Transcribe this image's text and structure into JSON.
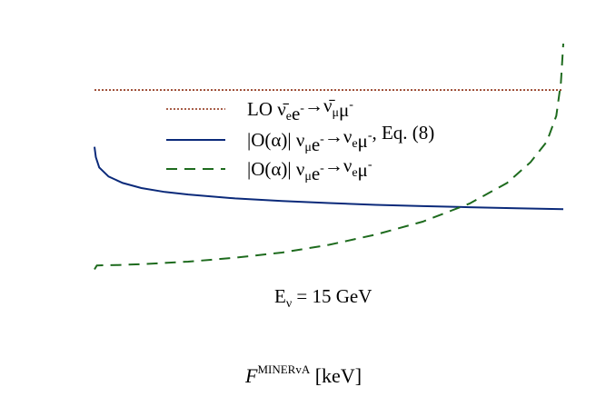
{
  "chart_data": {
    "type": "line",
    "xlabel_symbol": "F",
    "xlabel_sup": "MINERvA",
    "xlabel_unit": "[keV]",
    "annotation": {
      "prefix": "E",
      "sub": "ν",
      "value": "= 15 GeV"
    },
    "legend_placement": "upper-center",
    "series": [
      {
        "legend_parts": [
          {
            "t": "LO ",
            "k": "n"
          },
          {
            "t": "ν̄",
            "k": "n"
          },
          {
            "t": "e",
            "k": "sub"
          },
          {
            "t": "e",
            "k": "n"
          },
          {
            "t": "-",
            "k": "sup"
          },
          {
            "t": "→",
            "k": "n"
          },
          {
            "t": "ν̄",
            "k": "n"
          },
          {
            "t": "μ",
            "k": "sub"
          },
          {
            "t": "μ",
            "k": "n"
          },
          {
            "t": "-",
            "k": "sup"
          }
        ],
        "color": "#8b2a0e",
        "style": "dotted",
        "points": [
          [
            0.0,
            0.82
          ],
          [
            1.0,
            0.82
          ]
        ]
      },
      {
        "legend_parts": [
          {
            "t": "|O(α)| ν",
            "k": "n"
          },
          {
            "t": "μ",
            "k": "sub"
          },
          {
            "t": "e",
            "k": "n"
          },
          {
            "t": "-",
            "k": "sup"
          },
          {
            "t": "→ν",
            "k": "n"
          },
          {
            "t": "e",
            "k": "sub"
          },
          {
            "t": "μ",
            "k": "n"
          },
          {
            "t": "-",
            "k": "sup"
          },
          {
            "t": ", Eq. (8)",
            "k": "n"
          }
        ],
        "color": "#0b2a7a",
        "style": "solid",
        "points": [
          [
            0.0,
            0.6
          ],
          [
            0.003,
            0.56
          ],
          [
            0.01,
            0.52
          ],
          [
            0.03,
            0.485
          ],
          [
            0.06,
            0.46
          ],
          [
            0.1,
            0.44
          ],
          [
            0.15,
            0.425
          ],
          [
            0.2,
            0.415
          ],
          [
            0.3,
            0.4
          ],
          [
            0.4,
            0.39
          ],
          [
            0.5,
            0.382
          ],
          [
            0.6,
            0.375
          ],
          [
            0.7,
            0.37
          ],
          [
            0.8,
            0.366
          ],
          [
            0.9,
            0.362
          ],
          [
            1.0,
            0.358
          ]
        ]
      },
      {
        "legend_parts": [
          {
            "t": "|O(α)| ν",
            "k": "n"
          },
          {
            "t": "μ",
            "k": "sub"
          },
          {
            "t": "e",
            "k": "n"
          },
          {
            "t": "-",
            "k": "sup"
          },
          {
            "t": "→ν",
            "k": "n"
          },
          {
            "t": "e",
            "k": "sub"
          },
          {
            "t": "μ",
            "k": "n"
          },
          {
            "t": "-",
            "k": "sup"
          }
        ],
        "color": "#1e6b1e",
        "style": "dashed",
        "points": [
          [
            0.0,
            0.125
          ],
          [
            0.005,
            0.14
          ],
          [
            0.05,
            0.142
          ],
          [
            0.1,
            0.145
          ],
          [
            0.2,
            0.155
          ],
          [
            0.3,
            0.17
          ],
          [
            0.4,
            0.19
          ],
          [
            0.5,
            0.22
          ],
          [
            0.6,
            0.26
          ],
          [
            0.7,
            0.31
          ],
          [
            0.8,
            0.38
          ],
          [
            0.88,
            0.46
          ],
          [
            0.93,
            0.54
          ],
          [
            0.965,
            0.62
          ],
          [
            0.985,
            0.72
          ],
          [
            0.995,
            0.85
          ],
          [
            1.0,
            1.0
          ]
        ]
      }
    ],
    "xlim": [
      0,
      1
    ],
    "ylim": [
      0,
      1
    ]
  }
}
